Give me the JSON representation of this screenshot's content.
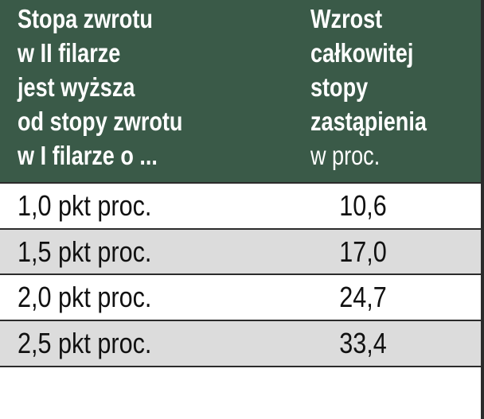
{
  "table": {
    "header": [
      {
        "lines": [
          "Stopa zwrotu",
          "w II filarze",
          "jest wyższa",
          "od stopy zwrotu",
          "w I filarze o ..."
        ]
      },
      {
        "lines": [
          "Wzrost",
          "całkowitej",
          "stopy",
          "zastąpienia",
          "w proc."
        ]
      }
    ],
    "rows": [
      [
        "1,0 pkt proc.",
        "10,6"
      ],
      [
        "1,5 pkt proc.",
        "17,0"
      ],
      [
        "2,0 pkt proc.",
        "24,7"
      ],
      [
        "2,5 pkt proc.",
        "33,4"
      ]
    ]
  }
}
